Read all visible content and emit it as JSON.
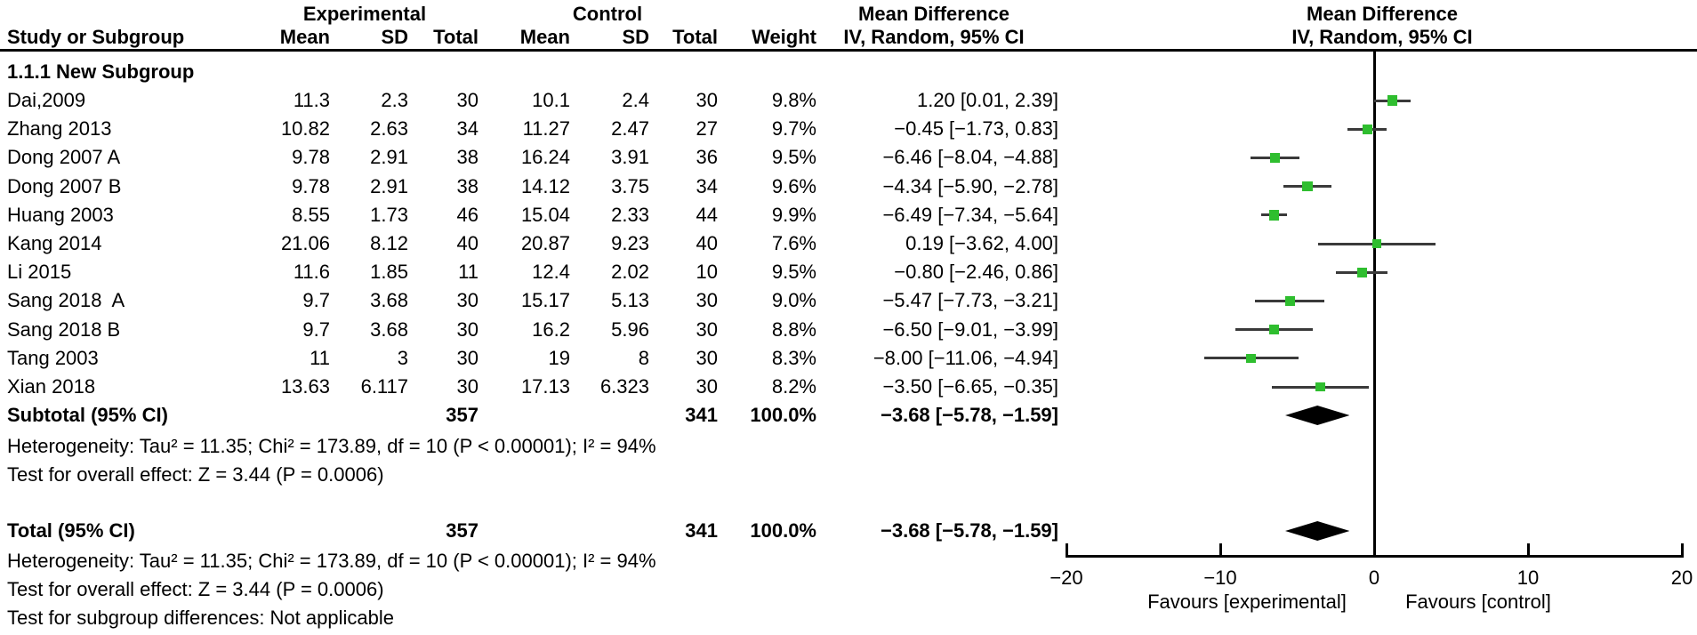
{
  "colors": {
    "background": "#ffffff",
    "text": "#000000",
    "marker_green": "#2fbe2f",
    "ci_line": "#3a3a3a",
    "diamond": "#000000",
    "axis": "#000000"
  },
  "table": {
    "headers": {
      "group1": "Experimental",
      "group2": "Control",
      "study_col": "Study or Subgroup",
      "mean_col": "Mean",
      "sd_col": "SD",
      "total_col": "Total",
      "weight_col": "Weight",
      "effect_title": "Mean Difference",
      "effect_sub": "IV, Random, 95% CI",
      "plot_title": "Mean Difference",
      "plot_sub": "IV, Random, 95% CI"
    },
    "subgroup_label": "1.1.1 New Subgroup",
    "rows": [
      {
        "name": "Dai,2009",
        "exp_mean": "11.3",
        "exp_sd": "2.3",
        "exp_total": "30",
        "ctrl_mean": "10.1",
        "ctrl_sd": "2.4",
        "ctrl_total": "30",
        "weight": "9.8%",
        "ci": "1.20 [0.01, 2.39]"
      },
      {
        "name": "Zhang 2013",
        "exp_mean": "10.82",
        "exp_sd": "2.63",
        "exp_total": "34",
        "ctrl_mean": "11.27",
        "ctrl_sd": "2.47",
        "ctrl_total": "27",
        "weight": "9.7%",
        "ci": "−0.45 [−1.73, 0.83]"
      },
      {
        "name": "Dong 2007 A",
        "exp_mean": "9.78",
        "exp_sd": "2.91",
        "exp_total": "38",
        "ctrl_mean": "16.24",
        "ctrl_sd": "3.91",
        "ctrl_total": "36",
        "weight": "9.5%",
        "ci": "−6.46 [−8.04, −4.88]"
      },
      {
        "name": "Dong 2007 B",
        "exp_mean": "9.78",
        "exp_sd": "2.91",
        "exp_total": "38",
        "ctrl_mean": "14.12",
        "ctrl_sd": "3.75",
        "ctrl_total": "34",
        "weight": "9.6%",
        "ci": "−4.34 [−5.90, −2.78]"
      },
      {
        "name": "Huang 2003",
        "exp_mean": "8.55",
        "exp_sd": "1.73",
        "exp_total": "46",
        "ctrl_mean": "15.04",
        "ctrl_sd": "2.33",
        "ctrl_total": "44",
        "weight": "9.9%",
        "ci": "−6.49 [−7.34, −5.64]"
      },
      {
        "name": "Kang 2014",
        "exp_mean": "21.06",
        "exp_sd": "8.12",
        "exp_total": "40",
        "ctrl_mean": "20.87",
        "ctrl_sd": "9.23",
        "ctrl_total": "40",
        "weight": "7.6%",
        "ci": "0.19 [−3.62, 4.00]"
      },
      {
        "name": "Li 2015",
        "exp_mean": "11.6",
        "exp_sd": "1.85",
        "exp_total": "11",
        "ctrl_mean": "12.4",
        "ctrl_sd": "2.02",
        "ctrl_total": "10",
        "weight": "9.5%",
        "ci": "−0.80 [−2.46, 0.86]"
      },
      {
        "name": "Sang 2018  A",
        "exp_mean": "9.7",
        "exp_sd": "3.68",
        "exp_total": "30",
        "ctrl_mean": "15.17",
        "ctrl_sd": "5.13",
        "ctrl_total": "30",
        "weight": "9.0%",
        "ci": "−5.47 [−7.73, −3.21]"
      },
      {
        "name": "Sang 2018 B",
        "exp_mean": "9.7",
        "exp_sd": "3.68",
        "exp_total": "30",
        "ctrl_mean": "16.2",
        "ctrl_sd": "5.96",
        "ctrl_total": "30",
        "weight": "8.8%",
        "ci": "−6.50 [−9.01, −3.99]"
      },
      {
        "name": "Tang 2003",
        "exp_mean": "11",
        "exp_sd": "3",
        "exp_total": "30",
        "ctrl_mean": "19",
        "ctrl_sd": "8",
        "ctrl_total": "30",
        "weight": "8.3%",
        "ci": "−8.00 [−11.06, −4.94]"
      },
      {
        "name": "Xian 2018",
        "exp_mean": "13.63",
        "exp_sd": "6.117",
        "exp_total": "30",
        "ctrl_mean": "17.13",
        "ctrl_sd": "6.323",
        "ctrl_total": "30",
        "weight": "8.2%",
        "ci": "−3.50 [−6.65, −0.35]"
      }
    ],
    "subtotal_row": {
      "label": "Subtotal (95% CI)",
      "exp_total": "357",
      "ctrl_total": "341",
      "weight": "100.0%",
      "ci": "−3.68 [−5.78, −1.59]"
    },
    "total_row": {
      "label": "Total (95% CI)",
      "exp_total": "357",
      "ctrl_total": "341",
      "weight": "100.0%",
      "ci": "−3.68 [−5.78, −1.59]"
    },
    "stats_subtotal": {
      "heterogeneity": "Heterogeneity: Tau² = 11.35; Chi² = 173.89, df = 10 (P < 0.00001); I² = 94%",
      "overall_effect": "Test for overall effect: Z = 3.44 (P = 0.0006)"
    },
    "stats_total": {
      "heterogeneity": "Heterogeneity: Tau² = 11.35; Chi² = 173.89, df = 10 (P < 0.00001); I² = 94%",
      "overall_effect": "Test for overall effect: Z = 3.44 (P = 0.0006)",
      "subgroup_diff": "Test for subgroup differences: Not applicable"
    }
  },
  "chart_data": {
    "type": "forest",
    "title": "Mean Difference",
    "effect_measure": "IV, Random, 95% CI",
    "x": {
      "min": -20,
      "max": 20,
      "ticks": [
        -20,
        -10,
        0,
        10,
        20
      ],
      "favours_left": "Favours [experimental]",
      "favours_right": "Favours [control]"
    },
    "subgroup": "1.1.1 New Subgroup",
    "studies": [
      {
        "name": "Dai,2009",
        "md": 1.2,
        "lo": 0.01,
        "hi": 2.39,
        "weight": 9.8
      },
      {
        "name": "Zhang 2013",
        "md": -0.45,
        "lo": -1.73,
        "hi": 0.83,
        "weight": 9.7
      },
      {
        "name": "Dong 2007 A",
        "md": -6.46,
        "lo": -8.04,
        "hi": -4.88,
        "weight": 9.5
      },
      {
        "name": "Dong 2007 B",
        "md": -4.34,
        "lo": -5.9,
        "hi": -2.78,
        "weight": 9.6
      },
      {
        "name": "Huang 2003",
        "md": -6.49,
        "lo": -7.34,
        "hi": -5.64,
        "weight": 9.9
      },
      {
        "name": "Kang 2014",
        "md": 0.19,
        "lo": -3.62,
        "hi": 4.0,
        "weight": 7.6
      },
      {
        "name": "Li 2015",
        "md": -0.8,
        "lo": -2.46,
        "hi": 0.86,
        "weight": 9.5
      },
      {
        "name": "Sang 2018 A",
        "md": -5.47,
        "lo": -7.73,
        "hi": -3.21,
        "weight": 9.0
      },
      {
        "name": "Sang 2018 B",
        "md": -6.5,
        "lo": -9.01,
        "hi": -3.99,
        "weight": 8.8
      },
      {
        "name": "Tang 2003",
        "md": -8.0,
        "lo": -11.06,
        "hi": -4.94,
        "weight": 8.3
      },
      {
        "name": "Xian 2018",
        "md": -3.5,
        "lo": -6.65,
        "hi": -0.35,
        "weight": 8.2
      }
    ],
    "subtotal": {
      "md": -3.68,
      "lo": -5.78,
      "hi": -1.59
    },
    "total": {
      "md": -3.68,
      "lo": -5.78,
      "hi": -1.59
    }
  }
}
